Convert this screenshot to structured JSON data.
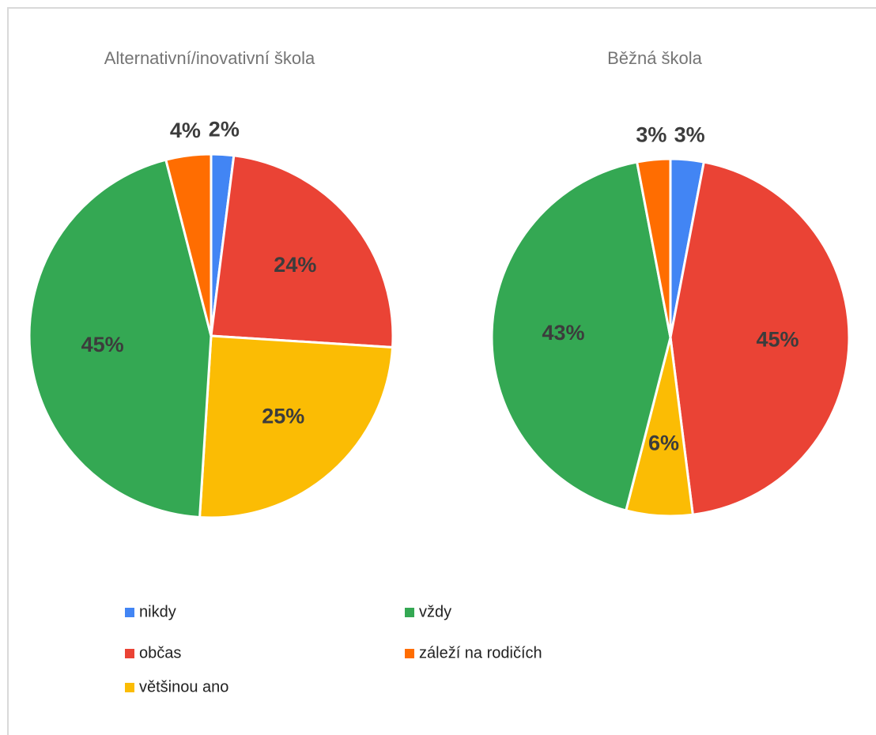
{
  "chart_data": {
    "type": "pie",
    "categories": [
      "nikdy",
      "občas",
      "většinou ano",
      "vždy",
      "záleží na rodičích"
    ],
    "colors": [
      "#4285f4",
      "#ea4335",
      "#fbbc04",
      "#34a853",
      "#ff6d01"
    ],
    "legend": "bottom",
    "pies": [
      {
        "title": "Alternativní/inovativní škola",
        "values": [
          2,
          24,
          25,
          45,
          4
        ],
        "value_labels": [
          "2%",
          "24%",
          "25%",
          "45%",
          "4%"
        ]
      },
      {
        "title": "Běžná škola",
        "values": [
          3,
          45,
          6,
          43,
          3
        ],
        "value_labels": [
          "3%",
          "45%",
          "6%",
          "43%",
          "3%"
        ]
      }
    ]
  }
}
